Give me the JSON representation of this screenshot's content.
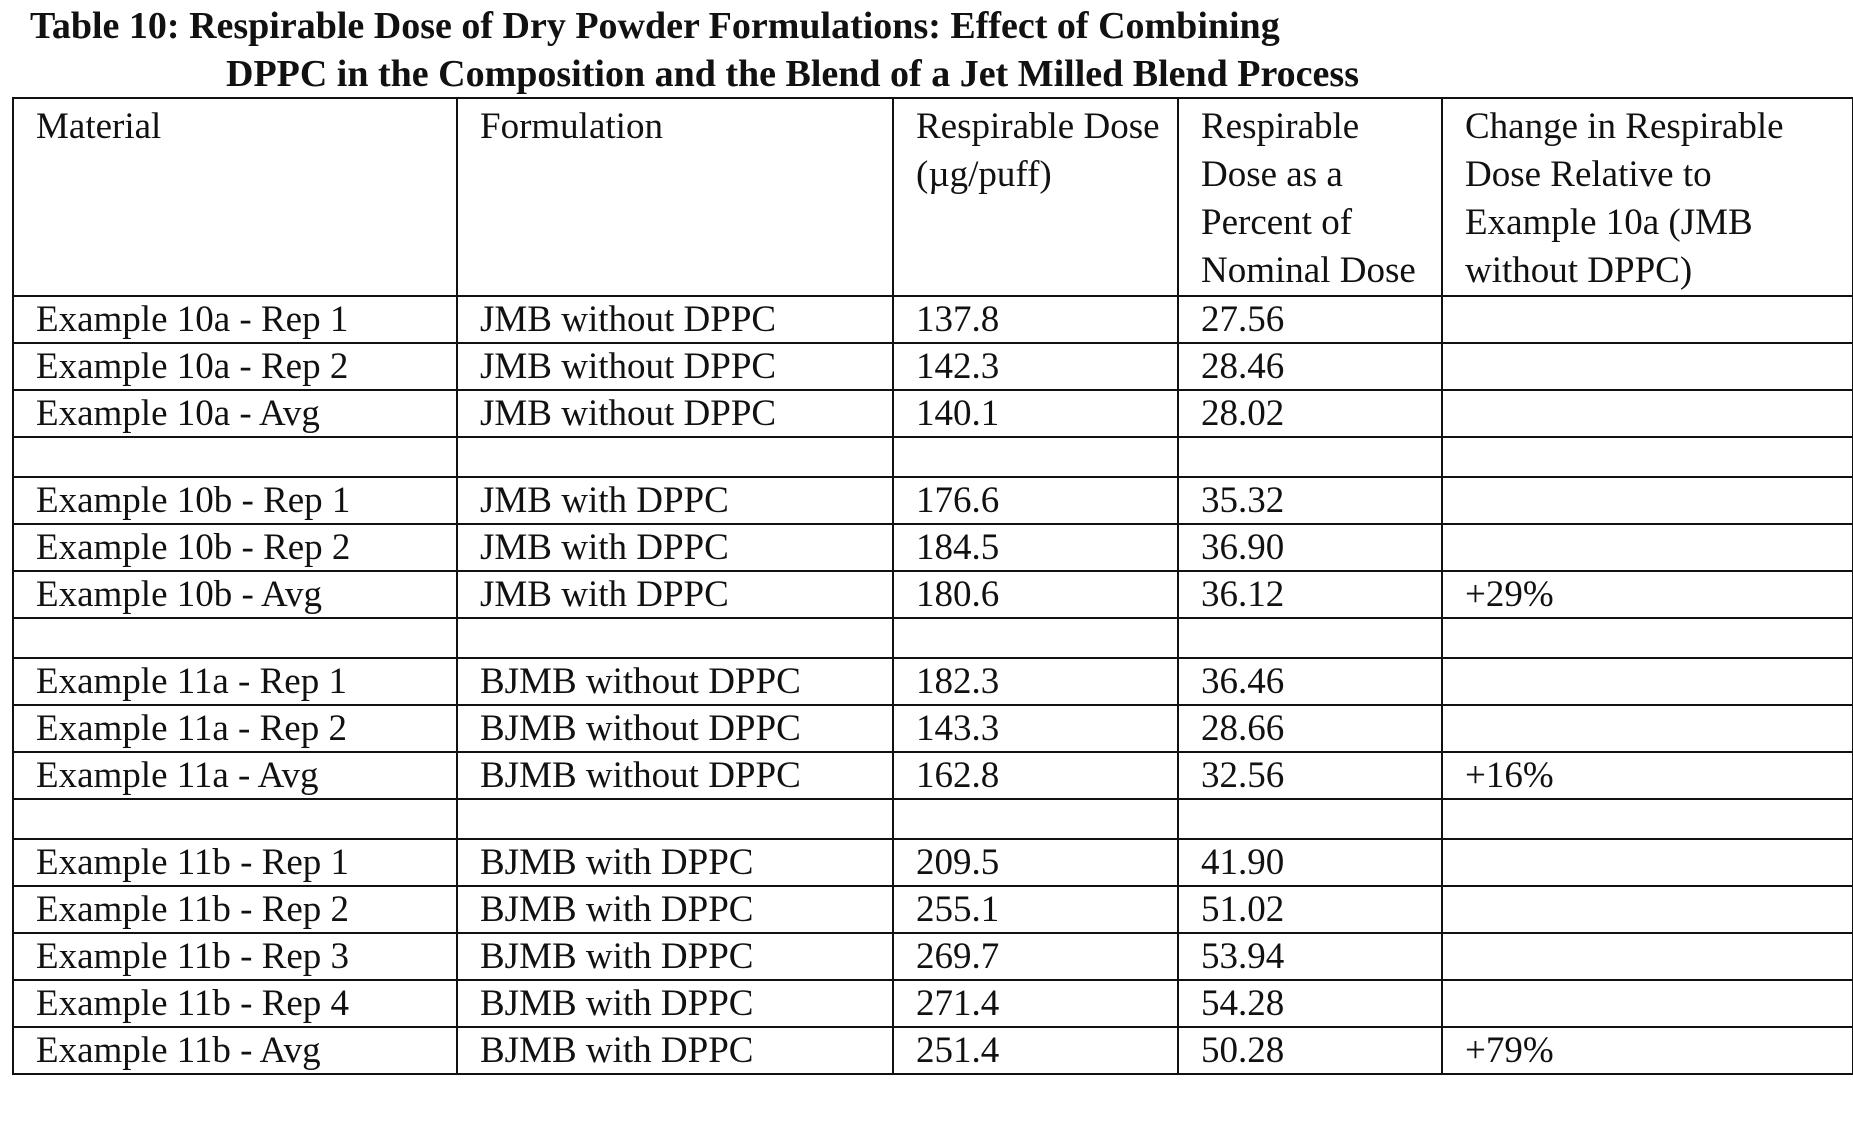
{
  "caption": {
    "line1": "Table 10: Respirable Dose of Dry Powder Formulations:  Effect of Combining",
    "line2": "DPPC in the Composition and the Blend of a Jet Milled Blend Process"
  },
  "table": {
    "headers": [
      "Material",
      "Formulation",
      "Respirable Dose (µg/puff)",
      "Respirable Dose as a Percent of Nominal Dose",
      "Change in Respirable Dose Relative to Example 10a (JMB without DPPC)"
    ],
    "rows": [
      [
        "Example 10a - Rep 1",
        "JMB without DPPC",
        "137.8",
        "27.56",
        ""
      ],
      [
        "Example 10a - Rep 2",
        "JMB without DPPC",
        "142.3",
        "28.46",
        ""
      ],
      [
        "Example 10a - Avg",
        "JMB without DPPC",
        "140.1",
        "28.02",
        ""
      ],
      [
        "",
        "",
        "",
        "",
        ""
      ],
      [
        "Example 10b - Rep 1",
        "JMB with DPPC",
        "176.6",
        "35.32",
        ""
      ],
      [
        "Example 10b - Rep 2",
        "JMB with DPPC",
        "184.5",
        "36.90",
        ""
      ],
      [
        "Example 10b - Avg",
        "JMB with DPPC",
        "180.6",
        "36.12",
        "+29%"
      ],
      [
        "",
        "",
        "",
        "",
        ""
      ],
      [
        "Example 11a - Rep 1",
        "BJMB without DPPC",
        "182.3",
        "36.46",
        ""
      ],
      [
        "Example 11a - Rep 2",
        "BJMB without DPPC",
        "143.3",
        "28.66",
        ""
      ],
      [
        "Example 11a - Avg",
        "BJMB without DPPC",
        "162.8",
        "32.56",
        "+16%"
      ],
      [
        "",
        "",
        "",
        "",
        ""
      ],
      [
        "Example 11b - Rep 1",
        "BJMB with DPPC",
        "209.5",
        "41.90",
        ""
      ],
      [
        "Example 11b - Rep 2",
        "BJMB with DPPC",
        "255.1",
        "51.02",
        ""
      ],
      [
        "Example 11b - Rep 3",
        "BJMB with DPPC",
        "269.7",
        "53.94",
        ""
      ],
      [
        "Example 11b - Rep 4",
        "BJMB with DPPC",
        "271.4",
        "54.28",
        ""
      ],
      [
        "Example 11b - Avg",
        "BJMB with DPPC",
        "251.4",
        "50.28",
        "+79%"
      ]
    ]
  }
}
